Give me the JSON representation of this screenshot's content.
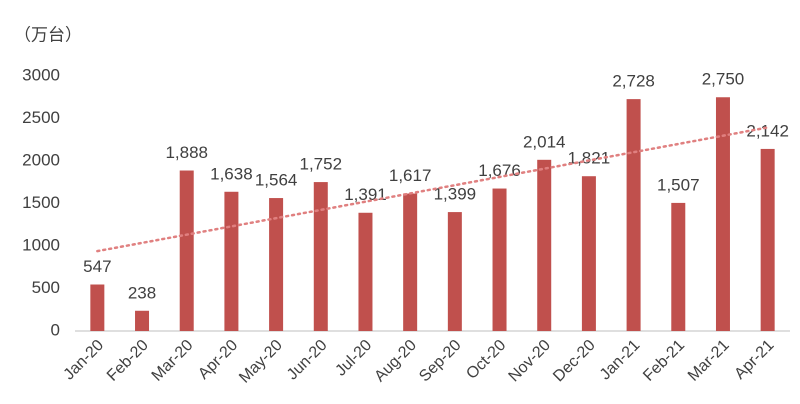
{
  "chart_data": {
    "type": "bar",
    "y_label": "（万台）",
    "categories": [
      "Jan-20",
      "Feb-20",
      "Mar-20",
      "Apr-20",
      "May-20",
      "Jun-20",
      "Jul-20",
      "Aug-20",
      "Sep-20",
      "Oct-20",
      "Nov-20",
      "Dec-20",
      "Jan-21",
      "Feb-21",
      "Mar-21",
      "Apr-21"
    ],
    "values": [
      547,
      238,
      1888,
      1638,
      1564,
      1752,
      1391,
      1617,
      1399,
      1676,
      2014,
      1821,
      2728,
      1507,
      2750,
      2142
    ],
    "value_labels": [
      "547",
      "238",
      "1,888",
      "1,638",
      "1,564",
      "1,752",
      "1,391",
      "1,617",
      "1,399",
      "1,676",
      "2,014",
      "1,821",
      "2,728",
      "1,507",
      "2,750",
      "2,142"
    ],
    "color": "#c0504d",
    "ylim": [
      0,
      3000
    ],
    "yticks": [
      0,
      500,
      1000,
      1500,
      2000,
      2500,
      3000
    ],
    "grid": false,
    "trendline": true,
    "trendline_color": "#e08080"
  }
}
